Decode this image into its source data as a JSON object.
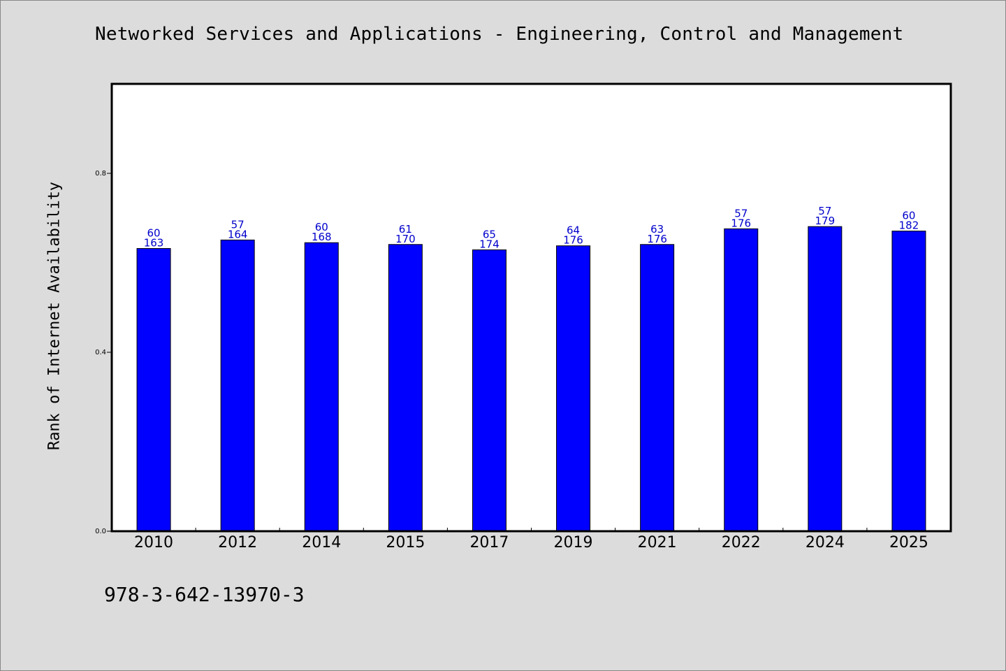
{
  "chart_data": {
    "type": "bar",
    "title": "Networked Services and Applications - Engineering, Control and Management",
    "ylabel": "Rank of Internet Availability",
    "xlabel": "",
    "ylim": [
      0,
      1.0
    ],
    "yticks": [
      0.0,
      0.4,
      0.8
    ],
    "ytick_labels": [
      "0.0",
      "0.4",
      "0.8"
    ],
    "grid": false,
    "bar_color": "#0000ff",
    "label_color": "#0000cc",
    "categories": [
      "2010",
      "2012",
      "2014",
      "2015",
      "2017",
      "2019",
      "2021",
      "2022",
      "2024",
      "2025"
    ],
    "values": [
      0.632,
      0.651,
      0.645,
      0.641,
      0.629,
      0.638,
      0.641,
      0.676,
      0.681,
      0.671
    ],
    "bar_labels_top": [
      "60",
      "57",
      "60",
      "61",
      "65",
      "64",
      "63",
      "57",
      "57",
      "60"
    ],
    "bar_labels_bottom": [
      "163",
      "164",
      "168",
      "170",
      "174",
      "176",
      "176",
      "176",
      "179",
      "182"
    ]
  },
  "footer": {
    "isbn": "978-3-642-13970-3"
  }
}
